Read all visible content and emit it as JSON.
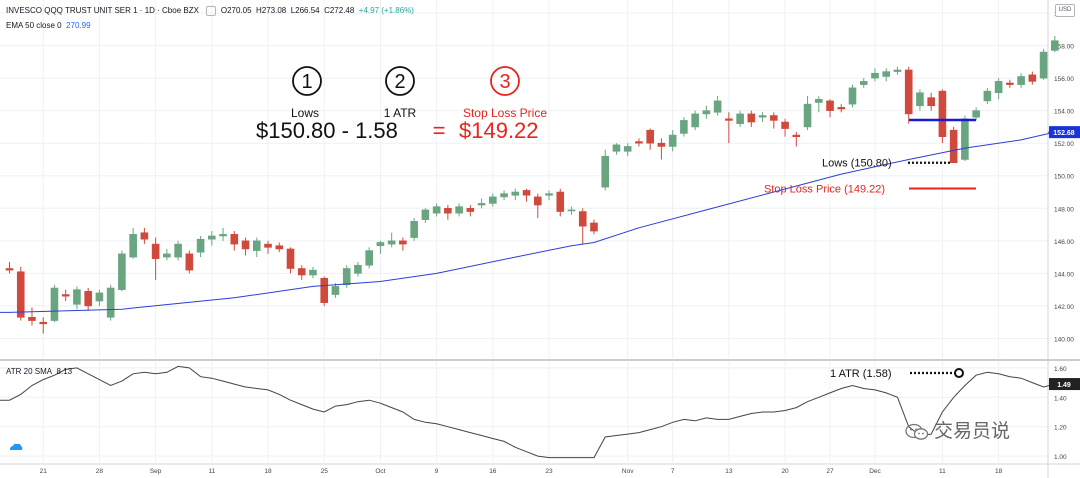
{
  "header": {
    "symbol": "INVESCO QQQ TRUST UNIT SER 1 · 1D · Cboe BZX",
    "o": "O270.05",
    "h": "H273.08",
    "l": "L266.54",
    "c": "C272.48",
    "change": "+4.97 (+1.86%)",
    "ema_label": "EMA 50 close 0",
    "ema_value": "270.99",
    "atr_label": "ATR 20 SMA",
    "atr_value": "8.13",
    "currency": "USD"
  },
  "annotations": {
    "step1_num": "1",
    "step2_num": "2",
    "step3_num": "3",
    "step1_label": "Lows",
    "step2_label": "1 ATR",
    "step3_label": "Stop Loss Price",
    "formula_part1": "$150.80 - 1.58",
    "formula_eq": "=",
    "formula_result": "$149.22",
    "lows_callout": "Lows (150.80)",
    "stop_callout": "Stop Loss Price (149.22)",
    "atr_callout": "1 ATR (1.58)"
  },
  "watermark": {
    "text": "交易员说"
  },
  "colors": {
    "up": "#6aa581",
    "down": "#cf4a3c",
    "ema": "#2b3fd6",
    "atr": "#444444",
    "red": "#e8241c",
    "blue": "#1a1ad0",
    "grid": "#eef0f3"
  },
  "chart_data": {
    "type": "candlestick",
    "main": {
      "y_ticks": [
        140,
        142,
        144,
        146,
        148,
        150,
        152,
        154,
        156,
        158,
        160
      ],
      "ylim": [
        138.8,
        160.8
      ],
      "price_label": "152.68",
      "candles": [
        [
          0,
          144.3,
          144.2,
          144.7,
          144.0
        ],
        [
          1,
          144.1,
          141.3,
          144.4,
          141.1
        ],
        [
          2,
          141.3,
          141.1,
          141.9,
          140.8
        ],
        [
          3,
          141.0,
          140.9,
          141.3,
          140.3
        ],
        [
          4,
          141.1,
          143.1,
          143.3,
          141.0
        ],
        [
          5,
          142.7,
          142.6,
          143.0,
          142.3
        ],
        [
          6,
          142.1,
          143.0,
          143.2,
          141.8
        ],
        [
          7,
          142.9,
          142.0,
          143.1,
          141.7
        ],
        [
          8,
          142.3,
          142.8,
          143.0,
          142.0
        ],
        [
          9,
          141.3,
          143.1,
          143.3,
          141.1
        ],
        [
          10,
          143.0,
          145.2,
          145.4,
          142.9
        ],
        [
          11,
          145.0,
          146.4,
          146.8,
          144.9
        ],
        [
          12,
          146.5,
          146.1,
          146.8,
          145.8
        ],
        [
          13,
          145.8,
          144.9,
          146.2,
          143.6
        ],
        [
          14,
          145.0,
          145.2,
          145.5,
          144.8
        ],
        [
          15,
          145.0,
          145.8,
          146.0,
          144.8
        ],
        [
          16,
          145.2,
          144.2,
          145.4,
          144.0
        ],
        [
          17,
          145.3,
          146.1,
          146.3,
          145.0
        ],
        [
          18,
          146.1,
          146.3,
          146.6,
          145.7
        ],
        [
          19,
          146.3,
          146.4,
          146.8,
          146.0
        ],
        [
          20,
          146.4,
          145.8,
          146.6,
          145.4
        ],
        [
          21,
          146.0,
          145.5,
          146.2,
          145.1
        ],
        [
          22,
          145.4,
          146.0,
          146.2,
          145.0
        ],
        [
          23,
          145.8,
          145.6,
          146.0,
          145.2
        ],
        [
          24,
          145.7,
          145.5,
          145.9,
          145.3
        ],
        [
          25,
          145.5,
          144.3,
          145.6,
          144.0
        ],
        [
          26,
          144.3,
          143.9,
          144.5,
          143.6
        ],
        [
          27,
          143.9,
          144.2,
          144.4,
          143.7
        ],
        [
          28,
          143.7,
          142.2,
          143.8,
          142.0
        ],
        [
          29,
          142.7,
          143.2,
          143.4,
          142.5
        ],
        [
          30,
          143.3,
          144.3,
          144.5,
          143.1
        ],
        [
          31,
          144.0,
          144.5,
          144.7,
          143.8
        ],
        [
          32,
          144.5,
          145.4,
          145.6,
          144.3
        ],
        [
          33,
          145.7,
          145.9,
          146.0,
          145.2
        ],
        [
          34,
          145.8,
          146.0,
          146.5,
          145.6
        ],
        [
          35,
          146.0,
          145.8,
          146.2,
          145.4
        ],
        [
          36,
          146.2,
          147.2,
          147.4,
          146.0
        ],
        [
          37,
          147.3,
          147.9,
          148.0,
          147.1
        ],
        [
          38,
          147.7,
          148.1,
          148.3,
          147.5
        ],
        [
          39,
          148.0,
          147.7,
          148.2,
          147.3
        ],
        [
          40,
          147.7,
          148.1,
          148.3,
          147.5
        ],
        [
          41,
          148.0,
          147.8,
          148.2,
          147.5
        ],
        [
          42,
          148.2,
          148.3,
          148.6,
          148.0
        ],
        [
          43,
          148.3,
          148.7,
          148.9,
          148.1
        ],
        [
          44,
          148.7,
          148.9,
          149.1,
          148.5
        ],
        [
          45,
          148.8,
          149.0,
          149.2,
          148.5
        ],
        [
          46,
          149.1,
          148.8,
          149.2,
          148.4
        ],
        [
          47,
          148.7,
          148.2,
          148.9,
          147.4
        ],
        [
          48,
          148.8,
          148.9,
          149.1,
          148.5
        ],
        [
          49,
          149.0,
          147.8,
          149.2,
          147.5
        ],
        [
          50,
          147.9,
          147.9,
          148.1,
          147.6
        ],
        [
          51,
          147.8,
          146.9,
          148.0,
          145.8
        ],
        [
          52,
          147.1,
          146.6,
          147.3,
          146.4
        ],
        [
          53,
          149.3,
          151.2,
          151.6,
          149.1
        ],
        [
          54,
          151.5,
          151.9,
          152.0,
          151.3
        ],
        [
          55,
          151.5,
          151.8,
          152.0,
          151.2
        ],
        [
          56,
          152.1,
          152.0,
          152.3,
          151.8
        ],
        [
          57,
          152.8,
          152.0,
          152.9,
          151.6
        ],
        [
          58,
          152.0,
          151.8,
          152.3,
          151.0
        ],
        [
          59,
          151.8,
          152.5,
          152.8,
          151.5
        ],
        [
          60,
          152.6,
          153.4,
          153.6,
          152.4
        ],
        [
          61,
          153.0,
          153.8,
          154.0,
          152.8
        ],
        [
          62,
          153.8,
          154.0,
          154.3,
          153.5
        ],
        [
          63,
          153.9,
          154.6,
          154.9,
          153.7
        ],
        [
          64,
          153.5,
          153.4,
          153.9,
          152.0
        ],
        [
          65,
          153.2,
          153.8,
          154.0,
          153.0
        ],
        [
          66,
          153.8,
          153.3,
          154.0,
          153.0
        ],
        [
          67,
          153.6,
          153.7,
          153.9,
          153.3
        ],
        [
          68,
          153.7,
          153.4,
          153.9,
          152.9
        ],
        [
          69,
          153.3,
          152.9,
          153.5,
          152.4
        ],
        [
          70,
          152.5,
          152.4,
          152.7,
          151.8
        ],
        [
          71,
          153.0,
          154.4,
          154.9,
          152.8
        ],
        [
          72,
          154.5,
          154.7,
          154.9,
          153.9
        ],
        [
          73,
          154.6,
          154.0,
          154.7,
          153.6
        ],
        [
          74,
          154.2,
          154.1,
          154.4,
          153.9
        ],
        [
          75,
          154.4,
          155.4,
          155.6,
          154.2
        ],
        [
          76,
          155.6,
          155.8,
          156.0,
          155.4
        ],
        [
          77,
          156.0,
          156.3,
          156.6,
          155.8
        ],
        [
          78,
          156.1,
          156.4,
          156.6,
          155.8
        ],
        [
          79,
          156.4,
          156.5,
          156.7,
          156.2
        ],
        [
          80,
          156.5,
          153.8,
          156.7,
          153.2
        ],
        [
          81,
          154.3,
          155.1,
          155.3,
          154.0
        ],
        [
          82,
          154.8,
          154.3,
          155.1,
          154.0
        ],
        [
          83,
          155.2,
          152.4,
          155.3,
          152.0
        ],
        [
          84,
          152.8,
          150.8,
          153.0,
          150.8
        ],
        [
          85,
          151.0,
          153.5,
          153.7,
          150.9
        ],
        [
          86,
          153.6,
          154.0,
          154.2,
          153.4
        ],
        [
          87,
          154.6,
          155.2,
          155.4,
          154.4
        ],
        [
          88,
          155.1,
          155.8,
          156.0,
          154.7
        ],
        [
          89,
          155.7,
          155.6,
          155.9,
          155.4
        ],
        [
          90,
          155.6,
          156.1,
          156.3,
          155.4
        ],
        [
          91,
          156.2,
          155.8,
          156.4,
          155.6
        ],
        [
          92,
          156.0,
          157.6,
          157.8,
          155.9
        ],
        [
          93,
          157.7,
          158.3,
          158.6,
          157.6
        ]
      ],
      "ema": [
        [
          0,
          141.6
        ],
        [
          10,
          141.8
        ],
        [
          20,
          142.5
        ],
        [
          27,
          143.2
        ],
        [
          33,
          143.5
        ],
        [
          38,
          144.0
        ],
        [
          45,
          145.0
        ],
        [
          50,
          145.7
        ],
        [
          52,
          145.9
        ],
        [
          56,
          146.8
        ],
        [
          62,
          147.9
        ],
        [
          68,
          149.0
        ],
        [
          74,
          150.1
        ],
        [
          80,
          151.0
        ],
        [
          85,
          151.7
        ],
        [
          90,
          152.2
        ],
        [
          93,
          152.68
        ]
      ]
    },
    "atr": {
      "y_ticks": [
        1.0,
        1.2,
        1.4,
        1.6
      ],
      "ylim": [
        0.96,
        1.64
      ],
      "price_label": "1.49",
      "values": [
        1.38,
        1.42,
        1.48,
        1.52,
        1.55,
        1.59,
        1.6,
        1.56,
        1.52,
        1.48,
        1.51,
        1.56,
        1.57,
        1.56,
        1.57,
        1.61,
        1.6,
        1.54,
        1.53,
        1.51,
        1.49,
        1.47,
        1.46,
        1.45,
        1.42,
        1.38,
        1.35,
        1.32,
        1.3,
        1.34,
        1.35,
        1.37,
        1.38,
        1.36,
        1.33,
        1.3,
        1.25,
        1.23,
        1.22,
        1.2,
        1.18,
        1.16,
        1.14,
        1.12,
        1.1,
        1.06,
        1.03,
        1.0,
        0.99,
        0.99,
        0.99,
        0.99,
        0.99,
        1.13,
        1.14,
        1.15,
        1.16,
        1.18,
        1.2,
        1.23,
        1.25,
        1.24,
        1.26,
        1.25,
        1.25,
        1.27,
        1.29,
        1.3,
        1.3,
        1.31,
        1.33,
        1.37,
        1.4,
        1.43,
        1.46,
        1.48,
        1.46,
        1.45,
        1.43,
        1.4,
        1.2,
        1.14,
        1.15,
        1.3,
        1.4,
        1.48,
        1.55,
        1.57,
        1.56,
        1.54,
        1.53,
        1.5,
        1.47,
        1.49
      ]
    },
    "x_ticks": [
      {
        "i": 3,
        "label": "21"
      },
      {
        "i": 8,
        "label": "28"
      },
      {
        "i": 13,
        "label": "Sep"
      },
      {
        "i": 18,
        "label": "11"
      },
      {
        "i": 23,
        "label": "18"
      },
      {
        "i": 28,
        "label": "25"
      },
      {
        "i": 33,
        "label": "Oct"
      },
      {
        "i": 38,
        "label": "9"
      },
      {
        "i": 43,
        "label": "16"
      },
      {
        "i": 48,
        "label": "23"
      },
      {
        "i": 55,
        "label": "Nov"
      },
      {
        "i": 59,
        "label": "7"
      },
      {
        "i": 64,
        "label": "13"
      },
      {
        "i": 69,
        "label": "20"
      },
      {
        "i": 73,
        "label": "27"
      },
      {
        "i": 77,
        "label": "Dec"
      },
      {
        "i": 83,
        "label": "11"
      },
      {
        "i": 88,
        "label": "18"
      }
    ],
    "levels": {
      "lows": 150.8,
      "stop_loss": 149.22,
      "atr_value": 1.58
    }
  }
}
